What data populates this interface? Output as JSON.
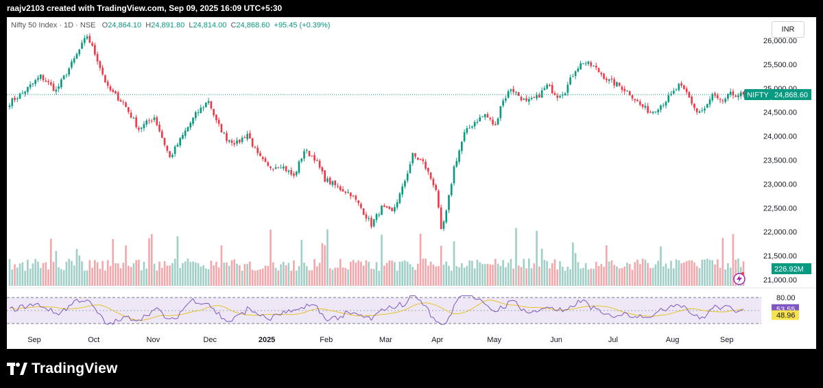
{
  "topbar": {
    "text": "raajv2103 created with TradingView.com, Sep 09, 2025 16:09 UTC+5:30"
  },
  "header": {
    "symbol": "Nifty 50 Index · 1D · NSE",
    "open_label": "O",
    "open": "24,864.10",
    "high_label": "H",
    "high": "24,891.80",
    "low_label": "L",
    "low": "24,814.00",
    "close_label": "C",
    "close": "24,868.60",
    "change": "+95.45 (+0.39%)"
  },
  "currency": "INR",
  "price_tag": {
    "name": "NIFTY",
    "value": "24,868.60"
  },
  "volume_tag": "226.92M",
  "rsi": {
    "value_tag": "53.55",
    "ma_tag": "48.96",
    "upper_label": "80.00"
  },
  "footer": {
    "brand": "TradingView"
  },
  "colors": {
    "up": "#089981",
    "down": "#f23645",
    "vol_up": "#9fcfc6",
    "vol_down": "#f2a7aa",
    "rsi_line": "#7e57c2",
    "rsi_ma": "#e6c229",
    "rsi_band": "#ede7f6",
    "price_line": "#089981"
  },
  "chart_data": {
    "type": "candlestick",
    "price_axis": {
      "ticks": [
        21000,
        21500,
        22000,
        22500,
        23000,
        23500,
        24000,
        24500,
        25000,
        25500,
        26000
      ],
      "tick_labels": [
        "21,000.00",
        "21,500.00",
        "22,000.00",
        "22,500.00",
        "23,000.00",
        "23,500.00",
        "24,000.00",
        "24,500.00",
        "25,000.00",
        "25,500.00",
        "26,000.00"
      ],
      "range": [
        20900,
        26200
      ]
    },
    "time_axis": {
      "labels": [
        "Sep",
        "Oct",
        "Nov",
        "Dec",
        "2025",
        "Feb",
        "Mar",
        "Apr",
        "May",
        "Jun",
        "Jul",
        "Aug",
        "Sep"
      ],
      "label_positions": [
        0,
        23,
        46,
        68,
        90,
        113,
        136,
        156,
        178,
        202,
        224,
        247,
        268
      ]
    },
    "last_close": 24868.6,
    "n_bars": 285,
    "close_anchors": [
      [
        0,
        24700
      ],
      [
        5,
        24900
      ],
      [
        12,
        25250
      ],
      [
        18,
        24950
      ],
      [
        25,
        25600
      ],
      [
        30,
        26100
      ],
      [
        34,
        25600
      ],
      [
        38,
        25000
      ],
      [
        44,
        24700
      ],
      [
        50,
        24150
      ],
      [
        56,
        24400
      ],
      [
        62,
        23550
      ],
      [
        68,
        24100
      ],
      [
        72,
        24450
      ],
      [
        77,
        24750
      ],
      [
        80,
        24300
      ],
      [
        84,
        23950
      ],
      [
        88,
        23850
      ],
      [
        92,
        24050
      ],
      [
        96,
        23600
      ],
      [
        100,
        23350
      ],
      [
        105,
        23400
      ],
      [
        110,
        23150
      ],
      [
        114,
        23700
      ],
      [
        118,
        23550
      ],
      [
        122,
        23100
      ],
      [
        128,
        22900
      ],
      [
        132,
        22800
      ],
      [
        136,
        22500
      ],
      [
        140,
        22150
      ],
      [
        144,
        22500
      ],
      [
        148,
        22400
      ],
      [
        152,
        22900
      ],
      [
        156,
        23600
      ],
      [
        160,
        23450
      ],
      [
        165,
        22900
      ],
      [
        167,
        22000
      ],
      [
        169,
        22400
      ],
      [
        172,
        23350
      ],
      [
        176,
        24050
      ],
      [
        180,
        24300
      ],
      [
        184,
        24450
      ],
      [
        188,
        24200
      ],
      [
        190,
        24650
      ],
      [
        194,
        25000
      ],
      [
        200,
        24700
      ],
      [
        204,
        24800
      ],
      [
        208,
        25050
      ],
      [
        212,
        24850
      ],
      [
        215,
        24950
      ],
      [
        219,
        25400
      ],
      [
        222,
        25550
      ],
      [
        226,
        25450
      ],
      [
        228,
        25350
      ],
      [
        232,
        25150
      ],
      [
        236,
        25050
      ],
      [
        240,
        24900
      ],
      [
        244,
        24650
      ],
      [
        248,
        24500
      ],
      [
        252,
        24650
      ],
      [
        256,
        24850
      ],
      [
        259,
        25050
      ],
      [
        262,
        24900
      ],
      [
        266,
        24500
      ],
      [
        269,
        24550
      ],
      [
        272,
        24850
      ],
      [
        275,
        24700
      ],
      [
        279,
        24868.6
      ]
    ],
    "volume_axis": {
      "unit": "M",
      "last": 226.92
    },
    "rsi": {
      "last": 53.55,
      "ma_last": 48.96,
      "upper": 80,
      "lower": 20
    }
  }
}
